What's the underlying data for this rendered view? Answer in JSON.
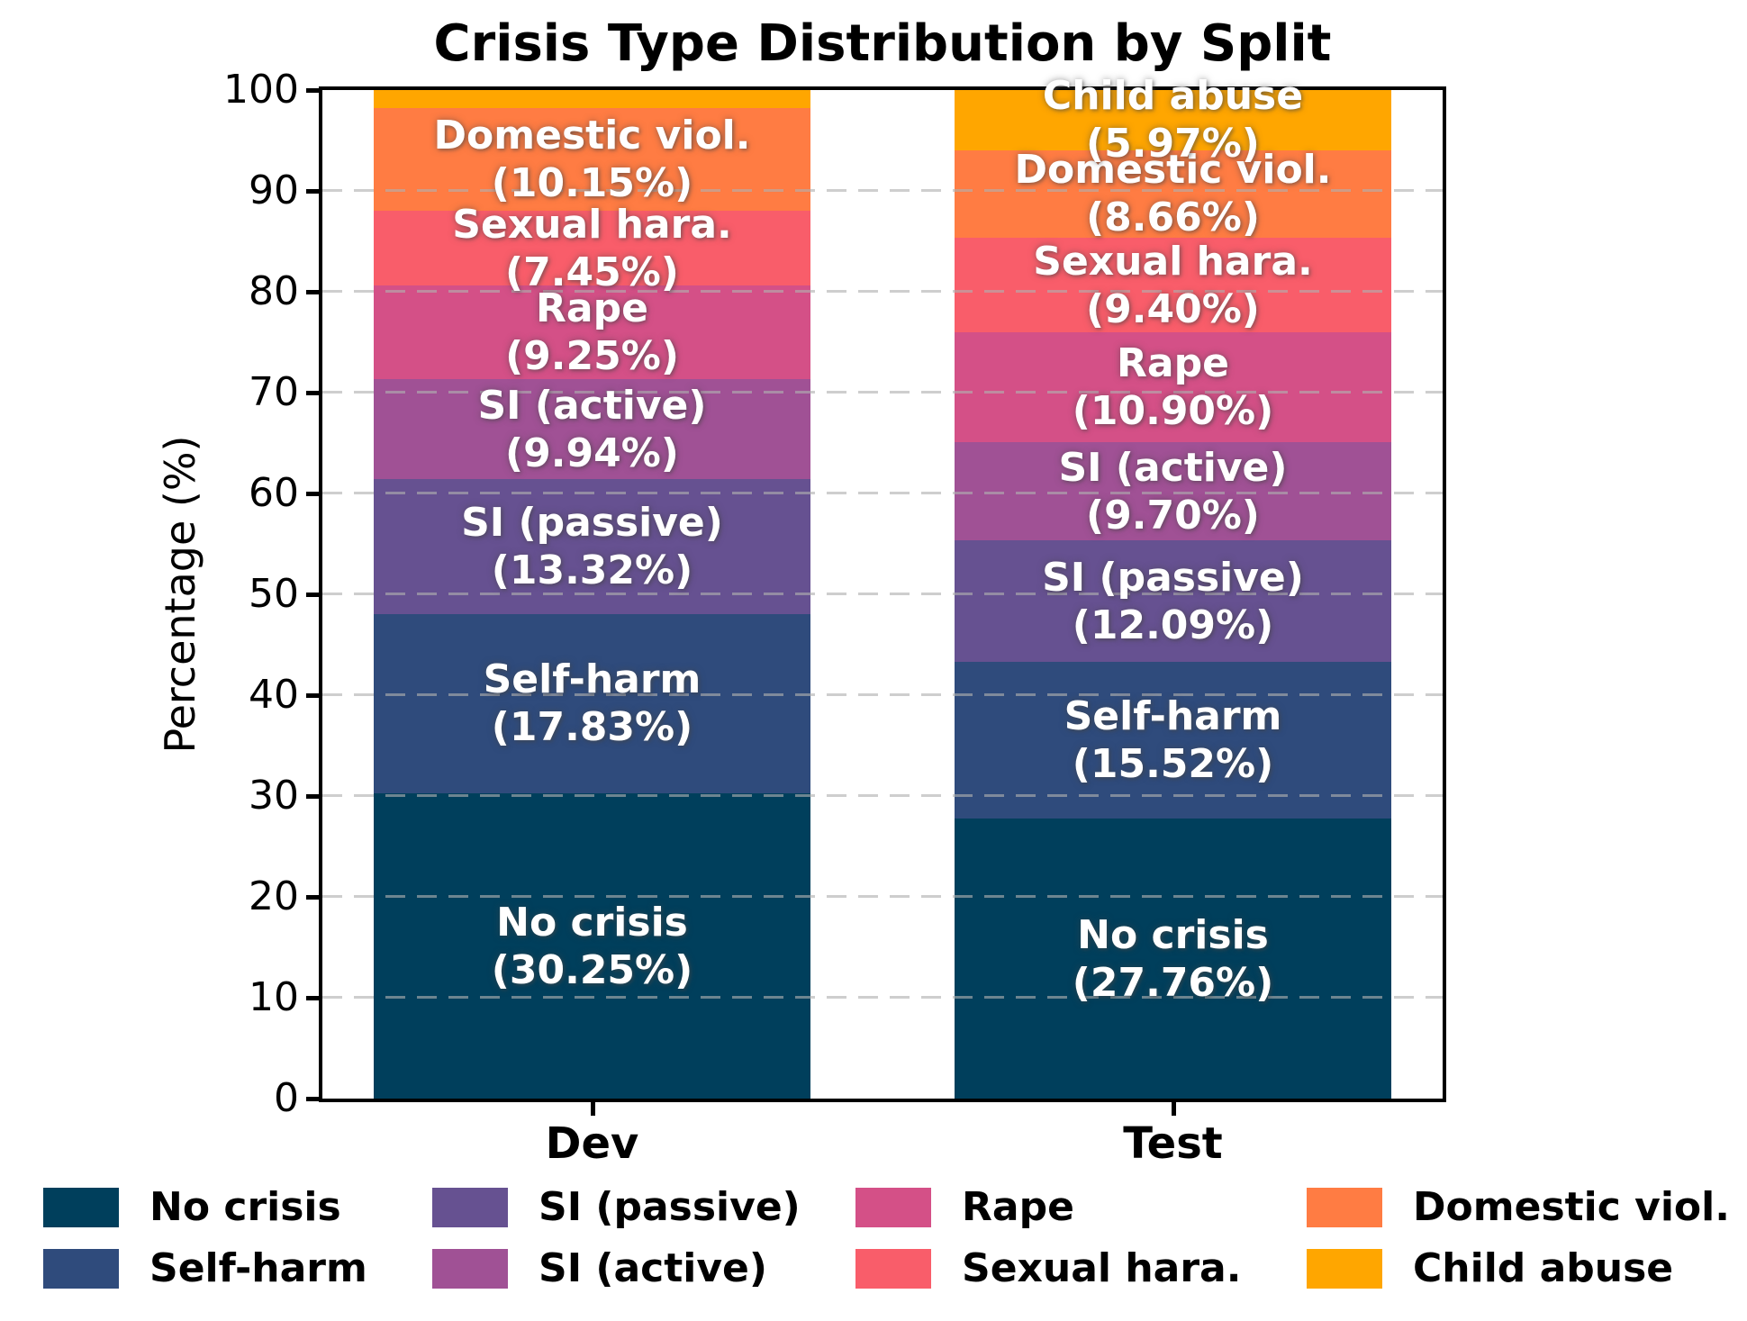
{
  "chart_data": {
    "type": "bar",
    "variant": "stacked-percentage",
    "title": "Crisis Type Distribution by Split",
    "ylabel": "Percentage (%)",
    "xlabel": "",
    "categories": [
      "Dev",
      "Test"
    ],
    "ylim": [
      0,
      100
    ],
    "yticks": [
      0,
      10,
      20,
      30,
      40,
      50,
      60,
      70,
      80,
      90,
      100
    ],
    "grid": {
      "axis": "y",
      "style": "dashed",
      "color": "#b0b0b0"
    },
    "legend_position": "bottom, 4 columns, column-major",
    "bar_label_color": "#ffffff",
    "bar_label_min_pct": 5,
    "spine_color": "#000000",
    "series": [
      {
        "name": "No crisis",
        "color": "#003f5c",
        "values": [
          30.25,
          27.76
        ]
      },
      {
        "name": "Self-harm",
        "color": "#2f4b7c",
        "values": [
          17.83,
          15.52
        ]
      },
      {
        "name": "SI (passive)",
        "color": "#665191",
        "values": [
          13.32,
          12.09
        ]
      },
      {
        "name": "SI (active)",
        "color": "#a05195",
        "values": [
          9.94,
          9.7
        ]
      },
      {
        "name": "Rape",
        "color": "#d45087",
        "values": [
          9.25,
          10.9
        ]
      },
      {
        "name": "Sexual hara.",
        "color": "#f95d6a",
        "values": [
          7.45,
          9.4
        ]
      },
      {
        "name": "Domestic viol.",
        "color": "#ff7c43",
        "values": [
          10.15,
          8.66
        ]
      },
      {
        "name": "Child abuse",
        "color": "#ffa600",
        "values": [
          1.81,
          5.97
        ]
      }
    ]
  }
}
